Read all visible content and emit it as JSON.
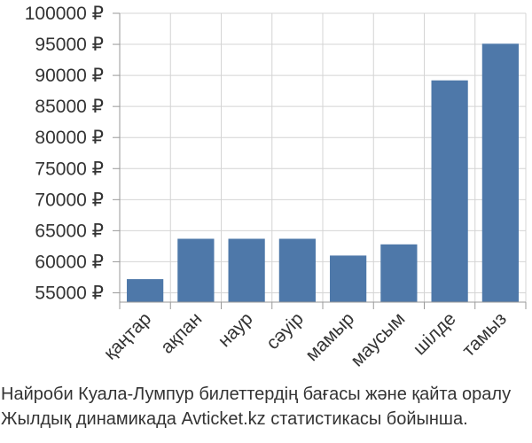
{
  "chart_data": {
    "type": "bar",
    "categories": [
      "қаңтар",
      "ақпан",
      "наур",
      "сәуір",
      "мамыр",
      "маусым",
      "шілде",
      "тамыз"
    ],
    "values": [
      57200,
      63700,
      63700,
      63700,
      61000,
      62800,
      89200,
      95100
    ],
    "ylim": [
      53500,
      100000
    ],
    "yticks": [
      55000,
      60000,
      65000,
      70000,
      75000,
      80000,
      85000,
      90000,
      95000,
      100000
    ],
    "ytick_labels": [
      "55000 ₽",
      "60000 ₽",
      "65000 ₽",
      "70000 ₽",
      "75000 ₽",
      "80000 ₽",
      "85000 ₽",
      "90000 ₽",
      "95000 ₽",
      "100000 ₽"
    ],
    "grid": true,
    "bar_color": "#4e78a9",
    "grid_color": "#d4d4d4",
    "axis_color": "#999999",
    "title": "",
    "xlabel": "",
    "ylabel": ""
  },
  "caption": {
    "line1": "Найроби Куала-Лумпур билеттердің бағасы және қайта оралу",
    "line2": "Жылдық динамикада Avticket.kz статистикасы бойынша."
  }
}
